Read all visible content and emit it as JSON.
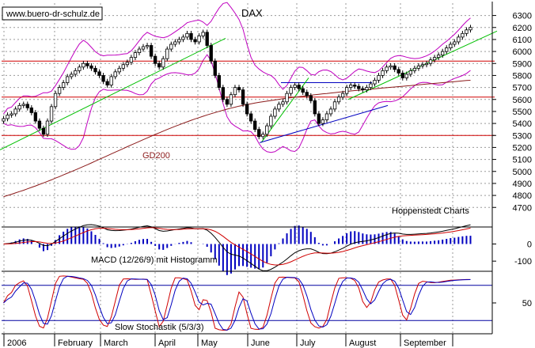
{
  "chart_data": [
    {
      "type": "candlestick",
      "title": "DAX",
      "watermark": "www.buero-dr-schulz.de",
      "source": "Hoppenstedt Charts",
      "ylim": [
        4550,
        6350
      ],
      "yticks": [
        4700,
        4800,
        4900,
        5000,
        5100,
        5200,
        5300,
        5400,
        5500,
        5600,
        5700,
        5800,
        5900,
        6000,
        6100,
        6200,
        6300
      ],
      "x_labels": [
        "2006",
        "February",
        "March",
        "April",
        "May",
        "June",
        "July",
        "August",
        "September"
      ],
      "horizontal_levels": [
        5920,
        5620,
        5300,
        5740
      ],
      "close": [
        5440,
        5470,
        5480,
        5520,
        5550,
        5560,
        5530,
        5490,
        5420,
        5360,
        5310,
        5420,
        5540,
        5650,
        5700,
        5740,
        5790,
        5810,
        5840,
        5870,
        5900,
        5880,
        5860,
        5830,
        5800,
        5750,
        5720,
        5790,
        5830,
        5860,
        5890,
        5910,
        5950,
        5990,
        6020,
        6040,
        6050,
        5960,
        5900,
        5870,
        5940,
        6020,
        6060,
        6080,
        6100,
        6120,
        6150,
        6100,
        6080,
        6130,
        6160,
        6050,
        5920,
        5800,
        5700,
        5600,
        5560,
        5640,
        5700,
        5680,
        5560,
        5480,
        5420,
        5350,
        5290,
        5310,
        5380,
        5460,
        5520,
        5560,
        5580,
        5650,
        5700,
        5720,
        5690,
        5660,
        5630,
        5590,
        5480,
        5400,
        5430,
        5480,
        5520,
        5580,
        5620,
        5650,
        5700,
        5720,
        5710,
        5690,
        5680,
        5700,
        5730,
        5760,
        5800,
        5840,
        5870,
        5880,
        5850,
        5820,
        5780,
        5810,
        5840,
        5860,
        5880,
        5890,
        5900,
        5930,
        5950,
        5970,
        6000,
        6030,
        6060,
        6080,
        6120,
        6150,
        6180,
        6200
      ],
      "gd200": [
        4790,
        4800,
        4810,
        4821,
        4832,
        4843,
        4855,
        4867,
        4879,
        4892,
        4904,
        4917,
        4930,
        4944,
        4957,
        4971,
        4985,
        4999,
        5013,
        5027,
        5042,
        5056,
        5071,
        5086,
        5101,
        5116,
        5131,
        5146,
        5161,
        5176,
        5191,
        5206,
        5221,
        5235,
        5250,
        5265,
        5279,
        5294,
        5308,
        5322,
        5336,
        5350,
        5363,
        5376,
        5389,
        5402,
        5414,
        5426,
        5438,
        5449,
        5460,
        5471,
        5481,
        5491,
        5501,
        5510,
        5519,
        5528,
        5536,
        5544,
        5551,
        5558,
        5564,
        5570,
        5576,
        5581,
        5586,
        5591,
        5596,
        5601,
        5606,
        5610,
        5615,
        5619,
        5623,
        5627,
        5631,
        5635,
        5639,
        5643,
        5647,
        5650,
        5654,
        5657,
        5661,
        5664,
        5667,
        5671,
        5674,
        5677,
        5680,
        5683,
        5686,
        5689,
        5692,
        5695,
        5698,
        5701,
        5704,
        5707,
        5710,
        5713,
        5716,
        5719,
        5722,
        5725,
        5728,
        5731,
        5734,
        5737,
        5740,
        5743,
        5746,
        5749,
        5752,
        5755,
        5758,
        5760
      ],
      "series_label": "GD200"
    },
    {
      "type": "line+histogram",
      "title": "MACD (12/26/9) mit Histogramm",
      "yticks": [
        0,
        -100
      ],
      "ylim": [
        -150,
        90
      ]
    },
    {
      "type": "line",
      "title": "Slow Stochastik (5/3/3)",
      "yticks": [
        50
      ],
      "ylim": [
        0,
        100
      ],
      "levels": [
        80,
        20
      ]
    }
  ]
}
